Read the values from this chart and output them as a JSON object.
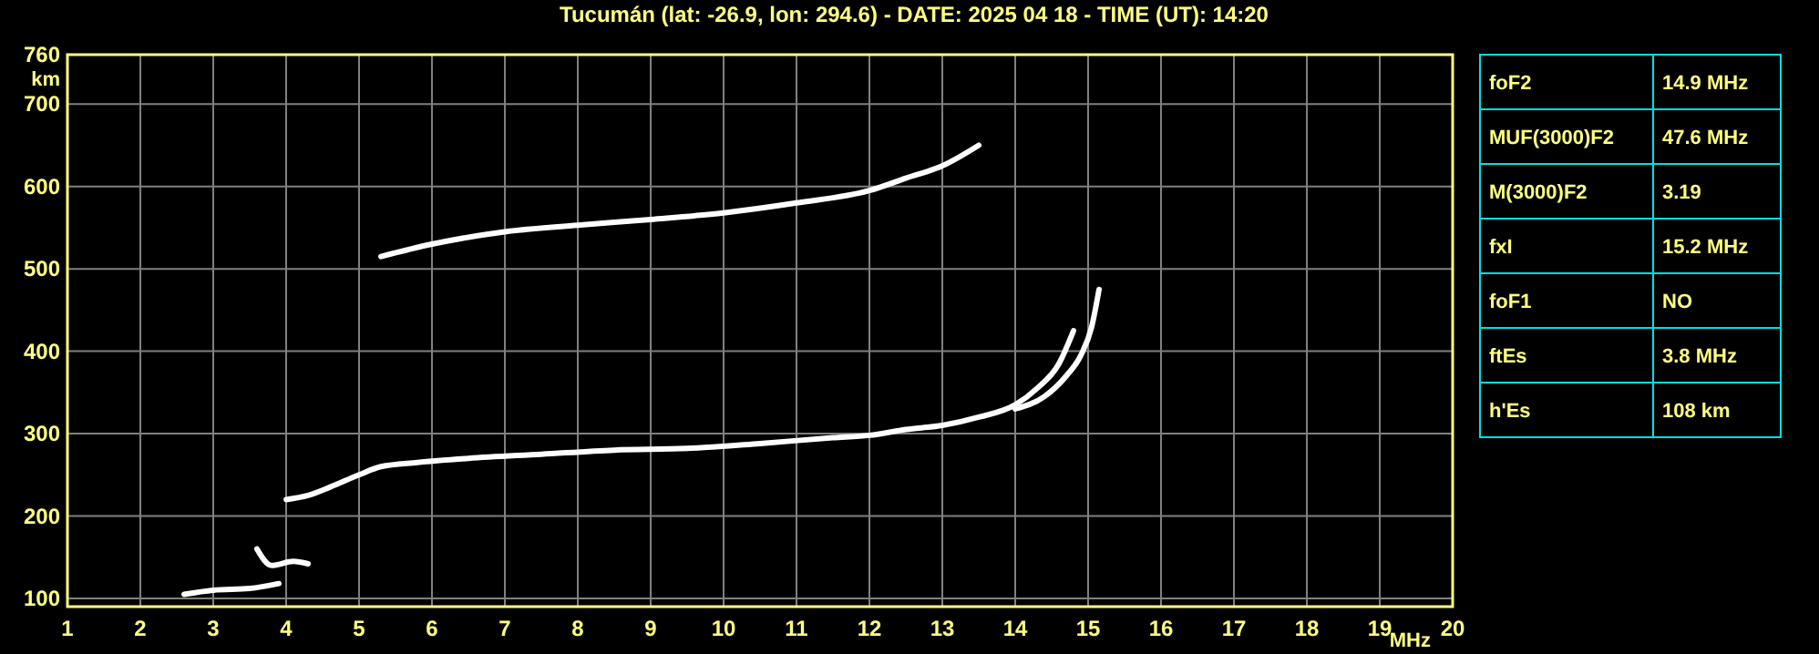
{
  "chart_data": [
    {
      "type": "line",
      "title": "Tucumán (lat: -26.9, lon: 294.6) - DATE: 2025 04 18 - TIME (UT): 14:20",
      "xlabel": "MHz",
      "ylabel": "km",
      "xlim": [
        1,
        20
      ],
      "xticks": [
        1,
        2,
        3,
        4,
        5,
        6,
        7,
        8,
        9,
        10,
        11,
        12,
        13,
        14,
        15,
        16,
        17,
        18,
        19,
        20
      ],
      "ylim": [
        90,
        760
      ],
      "yticks": [
        100,
        200,
        300,
        400,
        500,
        600,
        700,
        760
      ],
      "grid": true,
      "marker": "none",
      "line_style": "solid",
      "series": [
        {
          "color": "#ffffff",
          "x": [
            2.6,
            3.0,
            3.5,
            3.9
          ],
          "values": [
            105,
            110,
            112,
            118
          ]
        },
        {
          "color": "#ffffff",
          "x": [
            3.6,
            3.8,
            4.1,
            4.3
          ],
          "values": [
            160,
            140,
            145,
            142
          ]
        },
        {
          "color": "#ffffff",
          "x": [
            4.0,
            4.3,
            4.6,
            5.0,
            5.3,
            5.8,
            6.5,
            7.5,
            8.5,
            9.5,
            10.5,
            11.5,
            12.0,
            12.5,
            13.0,
            13.5,
            14.0,
            14.3,
            14.6,
            14.8
          ],
          "values": [
            220,
            225,
            235,
            250,
            260,
            265,
            270,
            275,
            280,
            282,
            288,
            295,
            298,
            305,
            310,
            320,
            335,
            355,
            385,
            425
          ]
        },
        {
          "color": "#ffffff",
          "x": [
            14.0,
            14.4,
            14.7,
            14.9,
            15.05,
            15.15
          ],
          "values": [
            330,
            345,
            370,
            395,
            430,
            475
          ]
        },
        {
          "color": "#ffffff",
          "x": [
            5.3,
            6.0,
            7.0,
            8.0,
            9.0,
            10.0,
            11.0,
            12.0,
            12.5,
            13.0,
            13.5
          ],
          "values": [
            515,
            530,
            545,
            553,
            560,
            568,
            580,
            595,
            610,
            625,
            650
          ]
        }
      ]
    },
    {
      "type": "other",
      "annotations": [
        "foF2",
        "14.9 MHz",
        "MUF(3000)F2",
        "47.6 MHz",
        "M(3000)F2",
        "3.19",
        "fxI",
        "15.2 MHz",
        "foF1",
        "NO",
        "ftEs",
        "3.8 MHz",
        "h'Es",
        "108 km"
      ]
    }
  ]
}
